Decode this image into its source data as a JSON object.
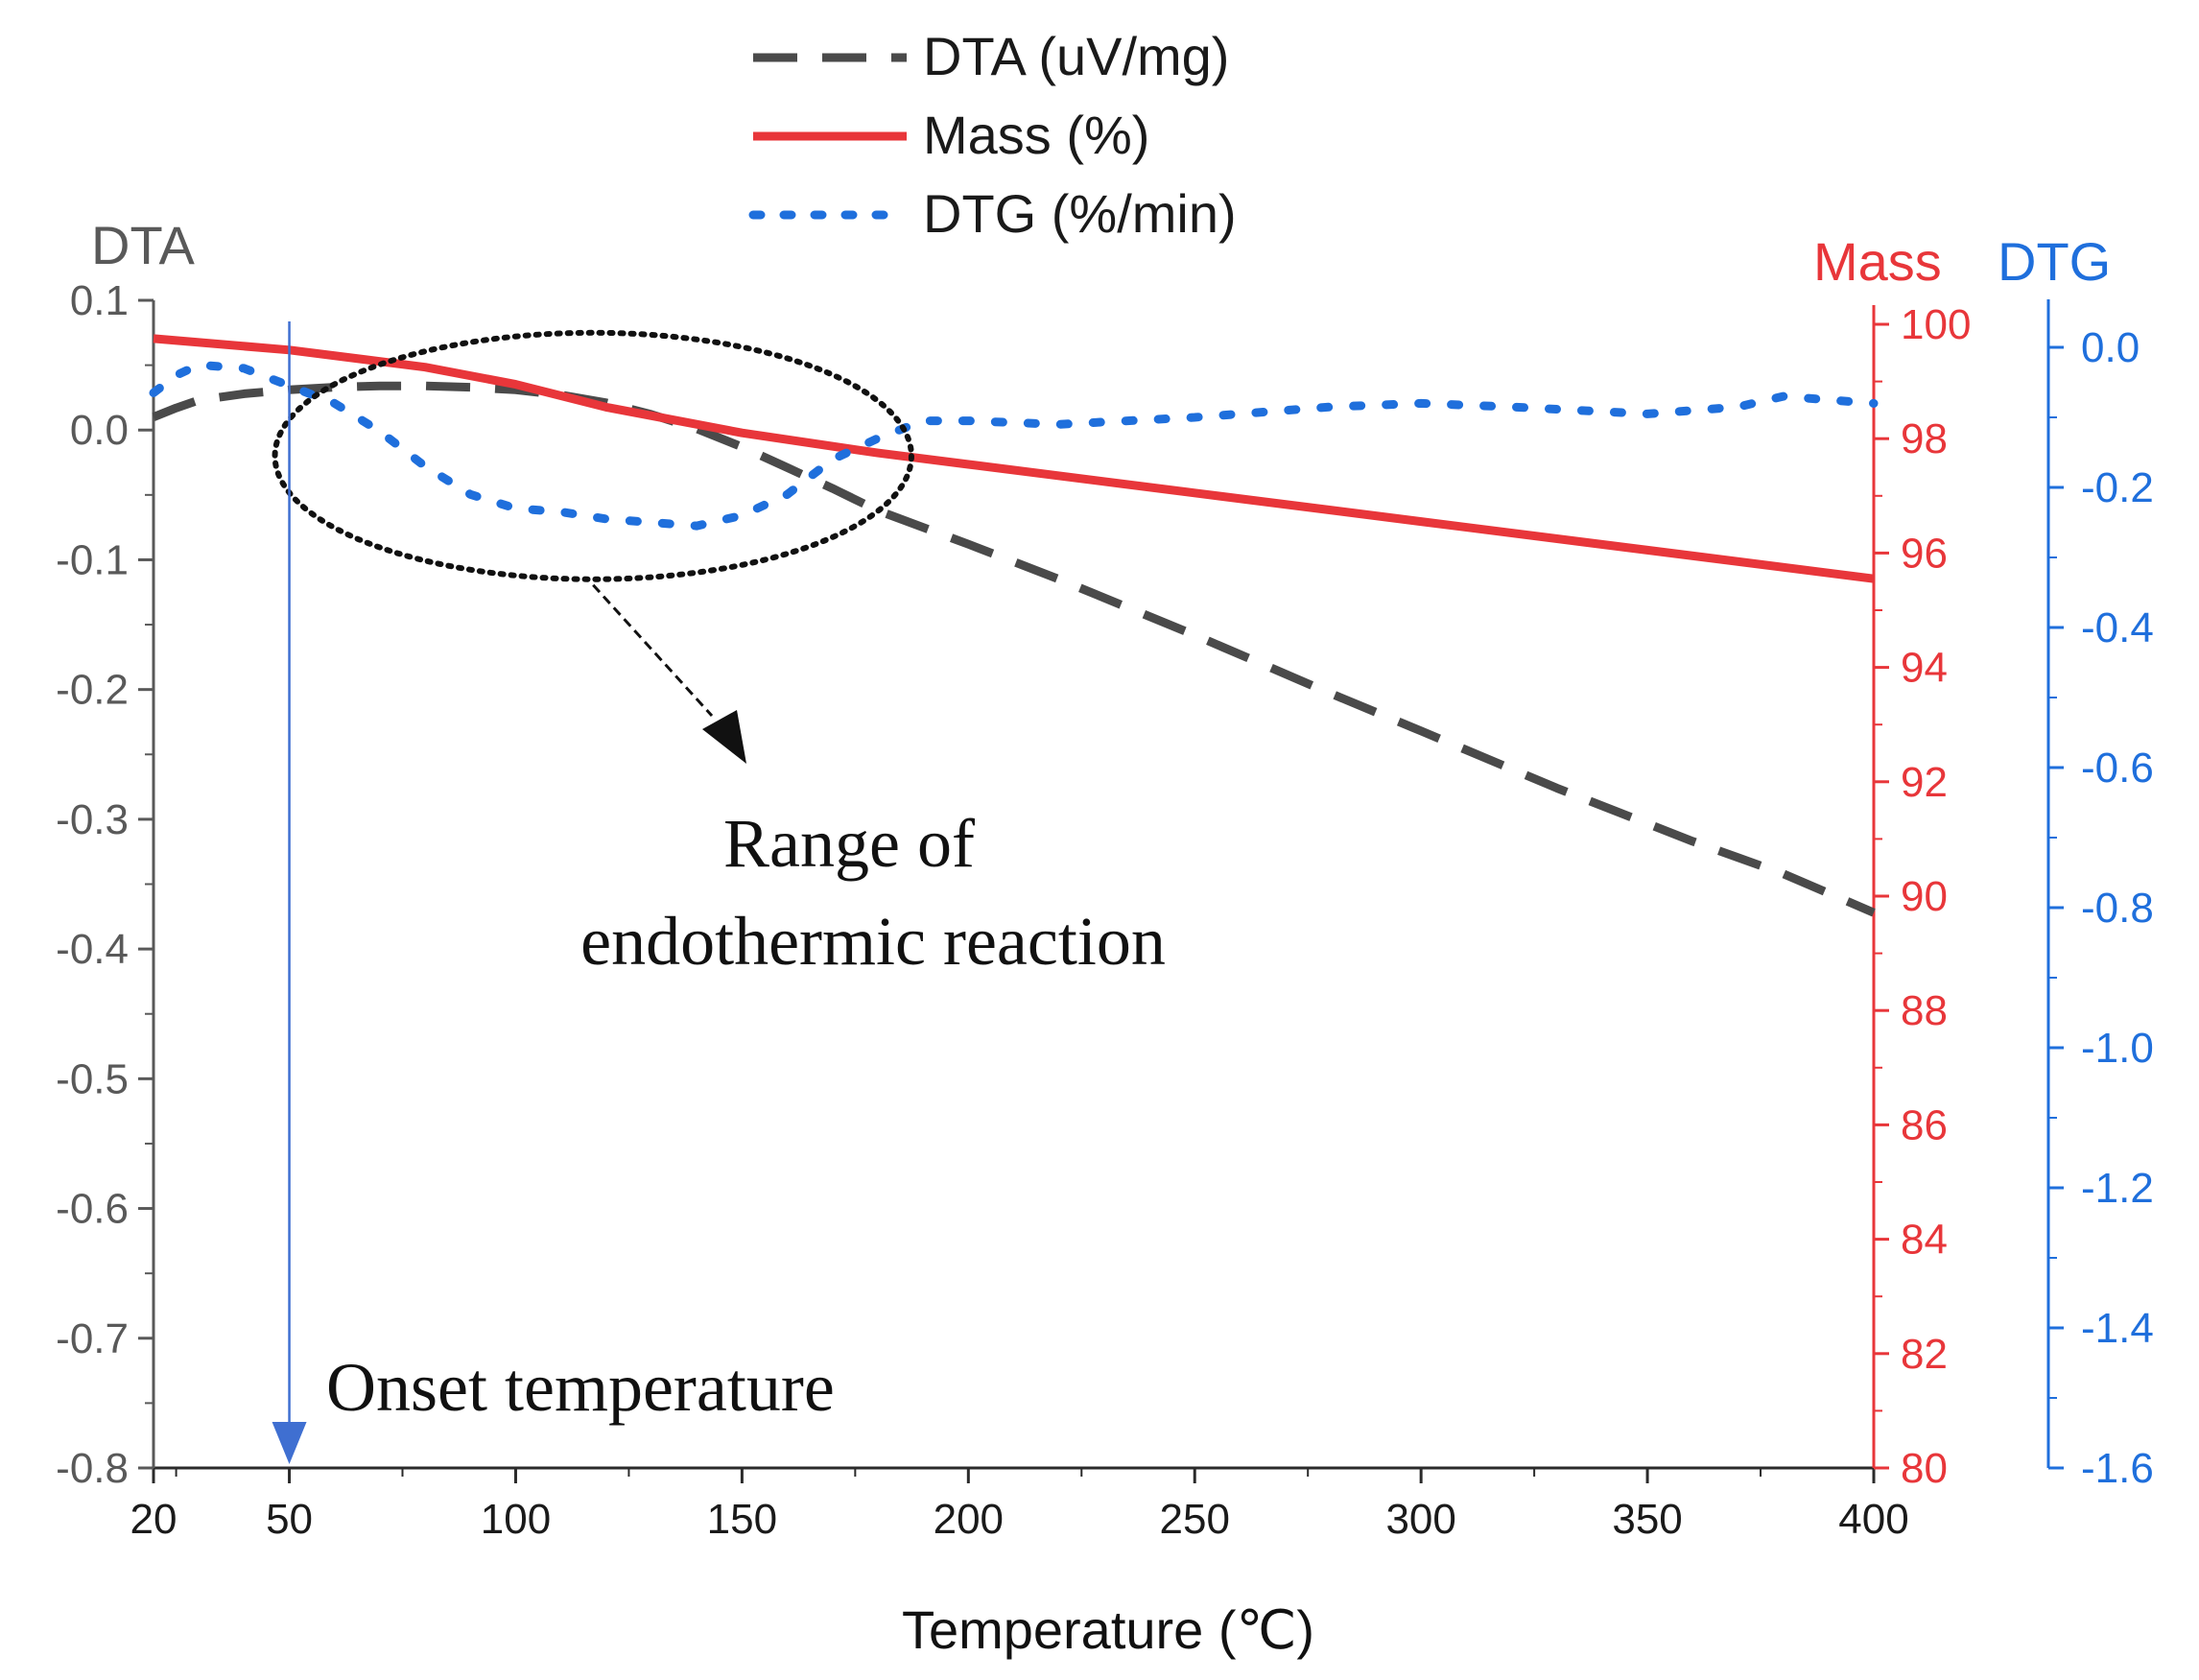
{
  "chart_data": {
    "type": "line",
    "xlabel": "Temperature (℃)",
    "xlim": [
      20,
      400
    ],
    "xticks": [
      20,
      50,
      100,
      150,
      200,
      250,
      300,
      350,
      400
    ],
    "axes": {
      "left": {
        "title": "DTA",
        "color": "#595959",
        "range": [
          -0.8,
          0.1
        ],
        "ticks": [
          0.1,
          0.0,
          -0.1,
          -0.2,
          -0.3,
          -0.4,
          -0.5,
          -0.6,
          -0.7,
          -0.8
        ],
        "tick_labels": [
          "0.1",
          "0.0",
          "-0.1",
          "-0.2",
          "-0.3",
          "-0.4",
          "-0.5",
          "-0.6",
          "-0.7",
          "-0.8"
        ]
      },
      "mass": {
        "title": "Mass",
        "color": "#e8363a",
        "range": [
          80,
          100.5
        ],
        "ticks": [
          100,
          98,
          96,
          94,
          92,
          90,
          88,
          86,
          84,
          82,
          80
        ],
        "tick_labels": [
          "100",
          "98",
          "96",
          "94",
          "92",
          "90",
          "88",
          "86",
          "84",
          "82",
          "80"
        ]
      },
      "dtg": {
        "title": "DTG",
        "color": "#1f6fdc",
        "range": [
          -1.6,
          0.07
        ],
        "ticks": [
          0.0,
          -0.2,
          -0.4,
          -0.6,
          -0.8,
          -1.0,
          -1.2,
          -1.4,
          -1.6
        ],
        "tick_labels": [
          "0.0",
          "-0.2",
          "-0.4",
          "-0.6",
          "-0.8",
          "-1.0",
          "-1.2",
          "-1.4",
          "-1.6"
        ]
      }
    },
    "series": [
      {
        "name": "DTA (uV/mg)",
        "axis": "left",
        "color": "#4a4a4a",
        "style": "dashed",
        "x": [
          20,
          25,
          30,
          40,
          50,
          60,
          70,
          80,
          90,
          100,
          110,
          120,
          130,
          140,
          150,
          160,
          170,
          180,
          200,
          220,
          250,
          280,
          300,
          330,
          360,
          380,
          400
        ],
        "y": [
          0.01,
          0.017,
          0.023,
          0.028,
          0.031,
          0.033,
          0.034,
          0.034,
          0.033,
          0.031,
          0.027,
          0.021,
          0.012,
          0.001,
          -0.013,
          -0.029,
          -0.045,
          -0.062,
          -0.088,
          -0.115,
          -0.158,
          -0.203,
          -0.232,
          -0.276,
          -0.317,
          -0.342,
          -0.372
        ]
      },
      {
        "name": "Mass (%)",
        "axis": "mass",
        "color": "#e8363a",
        "style": "solid",
        "x": [
          20,
          50,
          80,
          100,
          120,
          150,
          180,
          200,
          250,
          300,
          350,
          400
        ],
        "y": [
          99.75,
          99.55,
          99.25,
          98.95,
          98.55,
          98.1,
          97.75,
          97.55,
          97.05,
          96.55,
          96.05,
          95.55
        ]
      },
      {
        "name": "DTG (%/min)",
        "axis": "dtg",
        "color": "#1f6fdc",
        "style": "dotted",
        "x": [
          20,
          25,
          30,
          40,
          50,
          60,
          70,
          80,
          90,
          100,
          110,
          120,
          130,
          140,
          150,
          160,
          170,
          180,
          190,
          200,
          220,
          250,
          280,
          300,
          320,
          350,
          370,
          380,
          400
        ],
        "y": [
          -0.065,
          -0.04,
          -0.025,
          -0.03,
          -0.055,
          -0.08,
          -0.12,
          -0.17,
          -0.21,
          -0.23,
          -0.235,
          -0.245,
          -0.25,
          -0.255,
          -0.24,
          -0.21,
          -0.16,
          -0.13,
          -0.105,
          -0.105,
          -0.11,
          -0.1,
          -0.085,
          -0.08,
          -0.085,
          -0.095,
          -0.085,
          -0.07,
          -0.08
        ]
      }
    ],
    "legend": {
      "placement": "top-center",
      "entries": [
        "DTA (uV/mg)",
        "Mass (%)",
        "DTG (%/min)"
      ]
    },
    "annotations": {
      "range_label": [
        "Range of",
        "endothermic reaction"
      ],
      "onset_label": "Onset temperature",
      "onset_x": 50,
      "ellipse_x_range": [
        50,
        180
      ],
      "ellipse_dta_range": [
        -0.115,
        0.075
      ]
    }
  }
}
